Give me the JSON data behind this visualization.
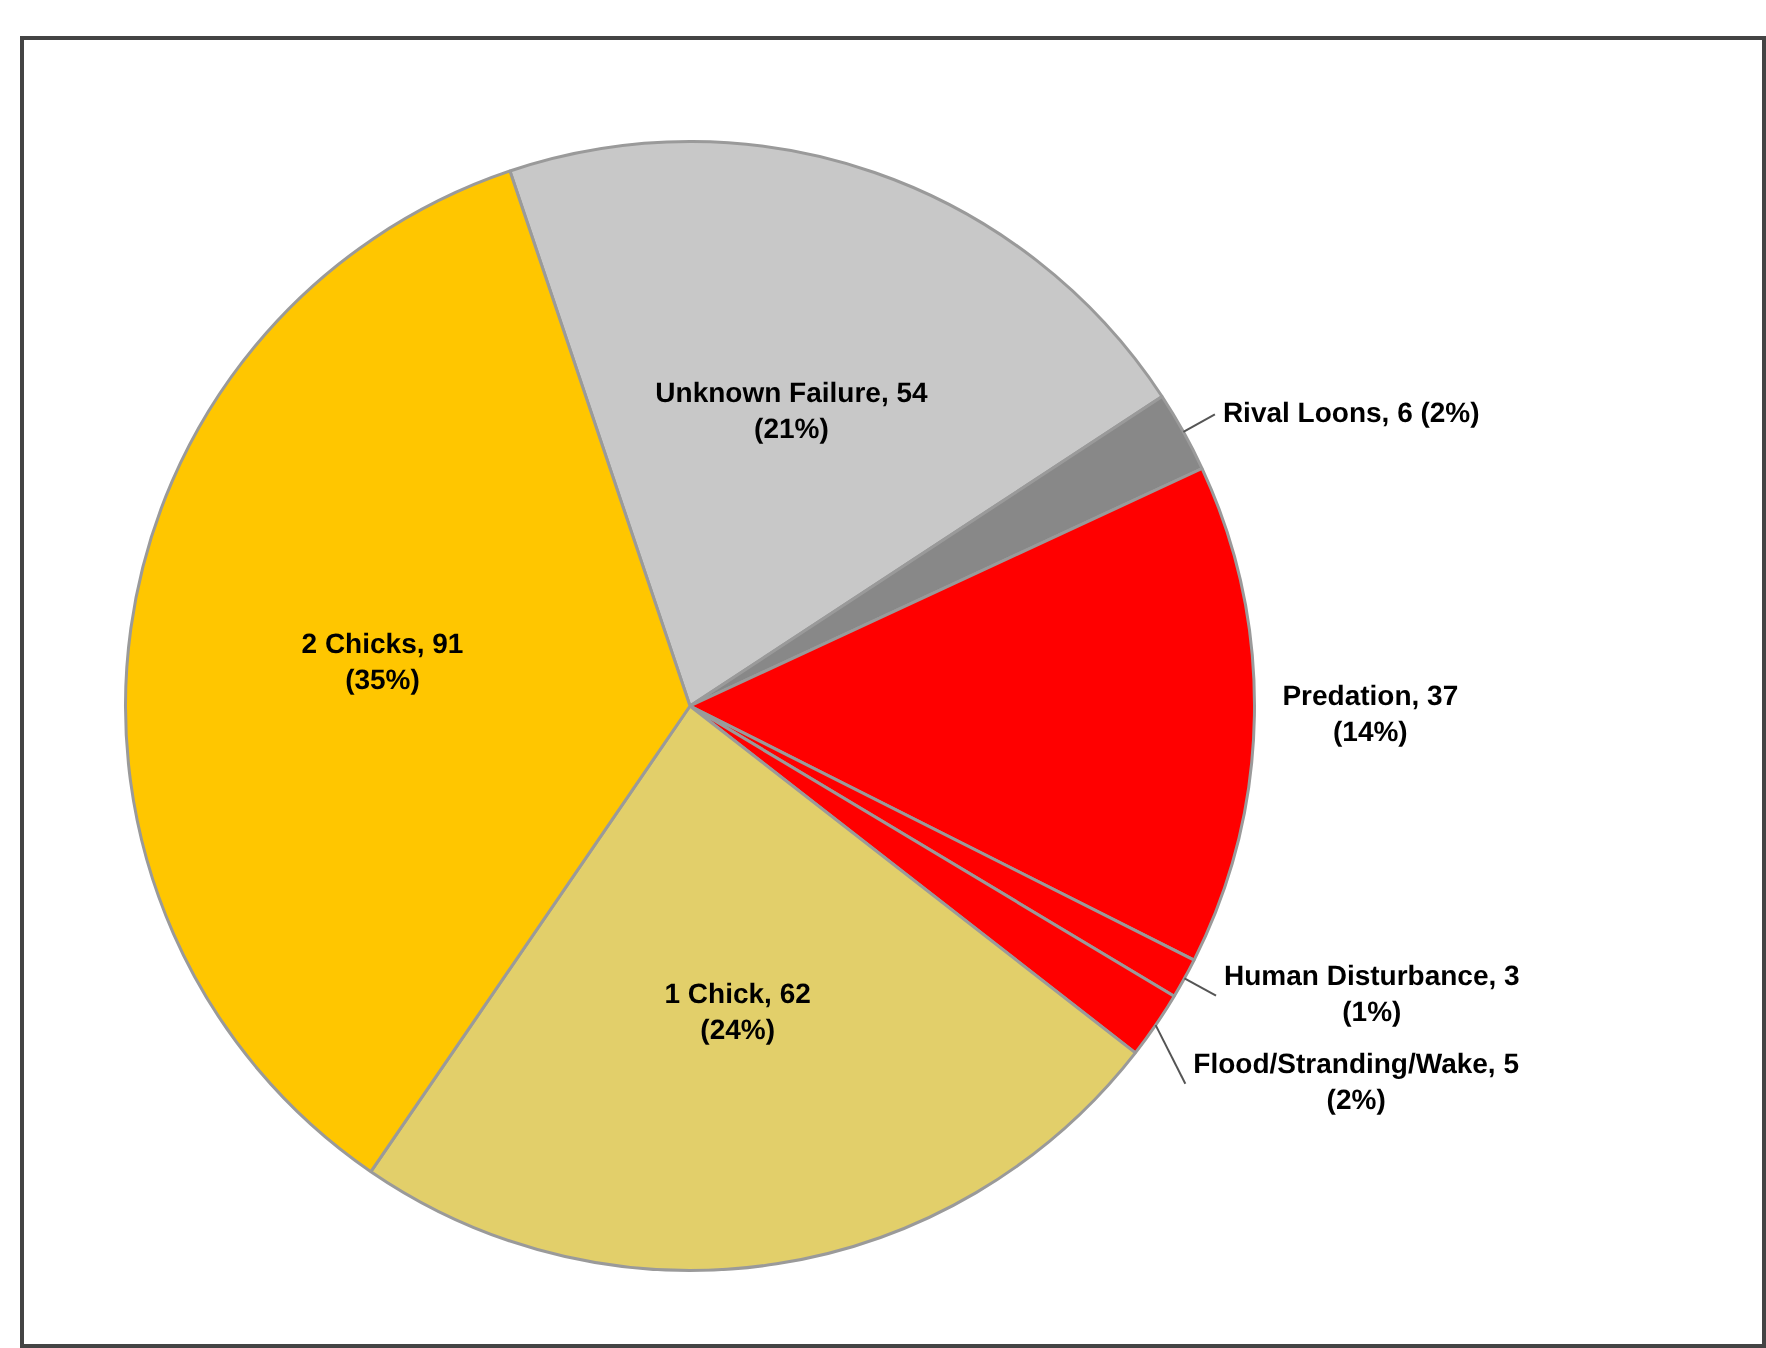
{
  "chart_data": {
    "type": "pie",
    "categories": [
      "Unknown Failure",
      "Rival Loons",
      "Predation",
      "Human Disturbance",
      "Flood/Stranding/Wake",
      "1 Chick",
      "2 Chicks"
    ],
    "values": [
      54,
      6,
      37,
      3,
      5,
      62,
      91
    ],
    "colors": [
      "#c8c8c8",
      "#888888",
      "#ff0000",
      "#ff0000",
      "#ff0000",
      "#e2cf6a",
      "#ffc600"
    ],
    "value_labels": [
      ", 54\n(21%)",
      ", 6 (2%)",
      ", 37\n(14%)",
      ", 3\n(1%)",
      ", 5\n(2%)",
      ", 62\n(24%)",
      ", 91\n(35%)"
    ],
    "legend": false
  }
}
